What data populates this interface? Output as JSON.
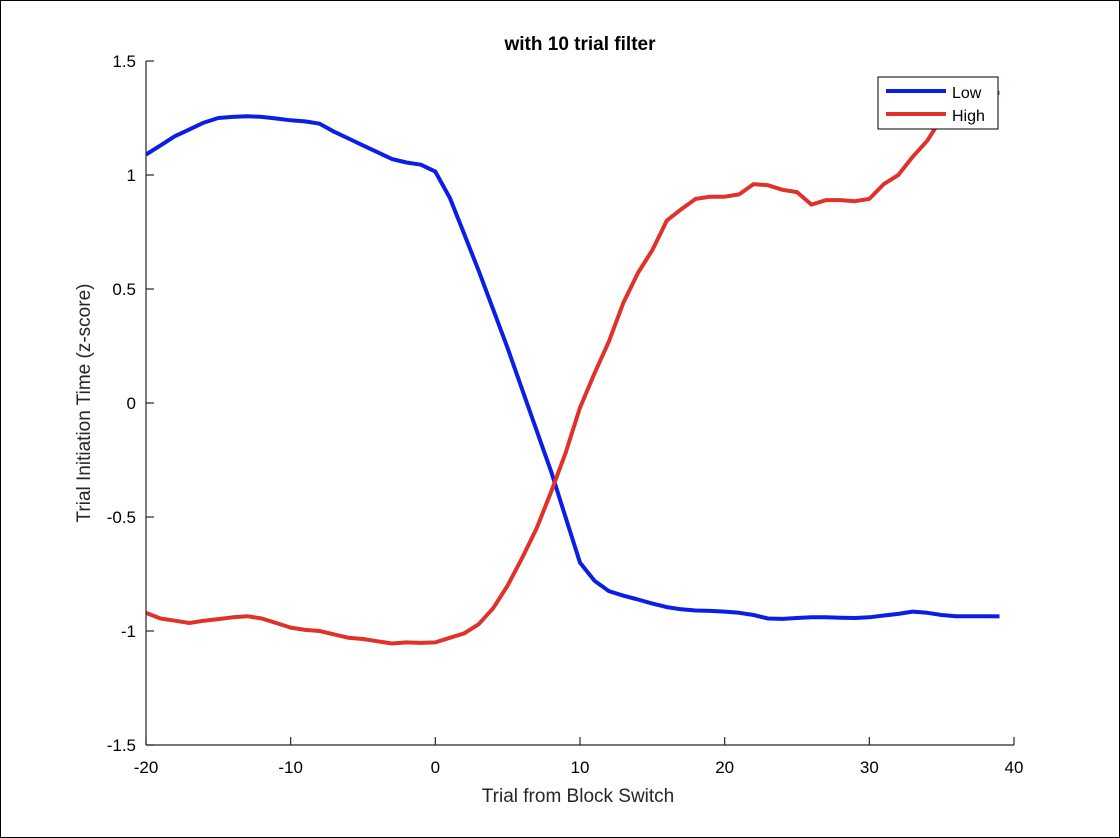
{
  "chart_data": {
    "type": "line",
    "title": "with 10 trial filter",
    "xlabel": "Trial from Block Switch",
    "ylabel": "Trial Initiation Time (z-score)",
    "xlim": [
      -20,
      40
    ],
    "ylim": [
      -1.5,
      1.5
    ],
    "xticks": [
      -20,
      -10,
      0,
      10,
      20,
      30,
      40
    ],
    "yticks": [
      -1.5,
      -1,
      -0.5,
      0,
      0.5,
      1,
      1.5
    ],
    "xtick_labels": [
      "-20",
      "-10",
      "0",
      "10",
      "20",
      "30",
      "40"
    ],
    "ytick_labels": [
      "-1.5",
      "-1",
      "-0.5",
      "0",
      "0.5",
      "1",
      "1.5"
    ],
    "legend_position": "top-right",
    "series": [
      {
        "name": "Low",
        "color": "#0a1ee6",
        "x": [
          -20,
          -19,
          -18,
          -17,
          -16,
          -15,
          -14,
          -13,
          -12,
          -11,
          -10,
          -9,
          -8,
          -7,
          -6,
          -5,
          -4,
          -3,
          -2,
          -1,
          0,
          1,
          2,
          3,
          4,
          5,
          6,
          7,
          8,
          9,
          10,
          11,
          12,
          13,
          14,
          15,
          16,
          17,
          18,
          19,
          20,
          21,
          22,
          23,
          24,
          25,
          26,
          27,
          28,
          29,
          30,
          31,
          32,
          33,
          34,
          35,
          36,
          37,
          38,
          39
        ],
        "y": [
          1.09,
          1.13,
          1.17,
          1.2,
          1.23,
          1.25,
          1.255,
          1.258,
          1.255,
          1.248,
          1.24,
          1.235,
          1.225,
          1.19,
          1.16,
          1.13,
          1.1,
          1.07,
          1.055,
          1.045,
          1.015,
          0.9,
          0.74,
          0.58,
          0.41,
          0.24,
          0.06,
          -0.12,
          -0.3,
          -0.5,
          -0.7,
          -0.78,
          -0.825,
          -0.845,
          -0.862,
          -0.88,
          -0.895,
          -0.905,
          -0.91,
          -0.912,
          -0.915,
          -0.92,
          -0.93,
          -0.945,
          -0.947,
          -0.943,
          -0.94,
          -0.94,
          -0.942,
          -0.943,
          -0.94,
          -0.932,
          -0.925,
          -0.915,
          -0.92,
          -0.93,
          -0.935,
          -0.935,
          -0.935,
          -0.936
        ]
      },
      {
        "name": "High",
        "color": "#e0312b",
        "x": [
          -20,
          -19,
          -18,
          -17,
          -16,
          -15,
          -14,
          -13,
          -12,
          -11,
          -10,
          -9,
          -8,
          -7,
          -6,
          -5,
          -4,
          -3,
          -2,
          -1,
          0,
          1,
          2,
          3,
          4,
          5,
          6,
          7,
          8,
          9,
          10,
          11,
          12,
          13,
          14,
          15,
          16,
          17,
          18,
          19,
          20,
          21,
          22,
          23,
          24,
          25,
          26,
          27,
          28,
          29,
          30,
          31,
          32,
          33,
          34,
          35,
          36,
          37,
          38,
          39
        ],
        "y": [
          -0.92,
          -0.945,
          -0.955,
          -0.965,
          -0.955,
          -0.948,
          -0.94,
          -0.935,
          -0.945,
          -0.965,
          -0.985,
          -0.995,
          -1.0,
          -1.015,
          -1.03,
          -1.035,
          -1.045,
          -1.055,
          -1.05,
          -1.052,
          -1.05,
          -1.03,
          -1.01,
          -0.97,
          -0.9,
          -0.8,
          -0.68,
          -0.55,
          -0.39,
          -0.22,
          -0.02,
          0.13,
          0.27,
          0.44,
          0.57,
          0.67,
          0.8,
          0.85,
          0.895,
          0.905,
          0.905,
          0.915,
          0.96,
          0.955,
          0.935,
          0.925,
          0.87,
          0.89,
          0.89,
          0.885,
          0.895,
          0.96,
          1.0,
          1.08,
          1.15,
          1.25,
          1.32,
          1.35,
          1.36,
          1.36
        ]
      }
    ]
  }
}
